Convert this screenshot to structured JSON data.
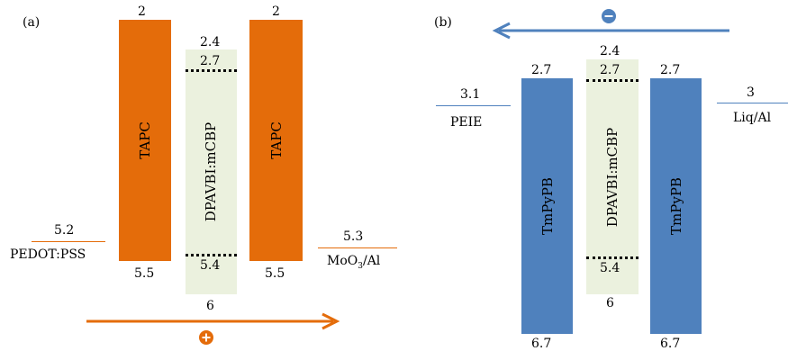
{
  "colors": {
    "orange": "#E46C0A",
    "blue": "#4F81BD",
    "emissive_bg": "#EBF1DE",
    "white": "#FFFFFF"
  },
  "panel_a": {
    "label": "(a)",
    "left_layer": {
      "name": "TAPC",
      "top": "2",
      "bottom": "5.5"
    },
    "emissive": {
      "name": "DPAVBI:mCBP",
      "top_outer": "2.4",
      "top_dotted": "2.7",
      "bottom_dotted": "5.4",
      "bottom_outer": "6"
    },
    "right_layer": {
      "name": "TAPC",
      "top": "2",
      "bottom": "5.5"
    },
    "anode": {
      "name": "PEDOT:PSS",
      "level": "5.2"
    },
    "cathode": {
      "name_main": "MoO",
      "name_sub": "3",
      "name_tail": "/Al",
      "level": "5.3"
    },
    "carrier_icon": "plus-circle-icon",
    "carrier_symbol": "+"
  },
  "panel_b": {
    "label": "(b)",
    "left_layer": {
      "name": "TmPyPB",
      "top": "2.7",
      "bottom": "6.7"
    },
    "emissive": {
      "name": "DPAVBI:mCBP",
      "top_outer": "2.4",
      "top_dotted": "2.7",
      "bottom_dotted": "5.4",
      "bottom_outer": "6"
    },
    "right_layer": {
      "name": "TmPyPB",
      "top": "2.7",
      "bottom": "6.7"
    },
    "left_electrode": {
      "name": "PEIE",
      "level": "3.1"
    },
    "right_electrode": {
      "name": "Liq/Al",
      "level": "3"
    },
    "carrier_icon": "minus-circle-icon",
    "carrier_symbol": "−"
  }
}
